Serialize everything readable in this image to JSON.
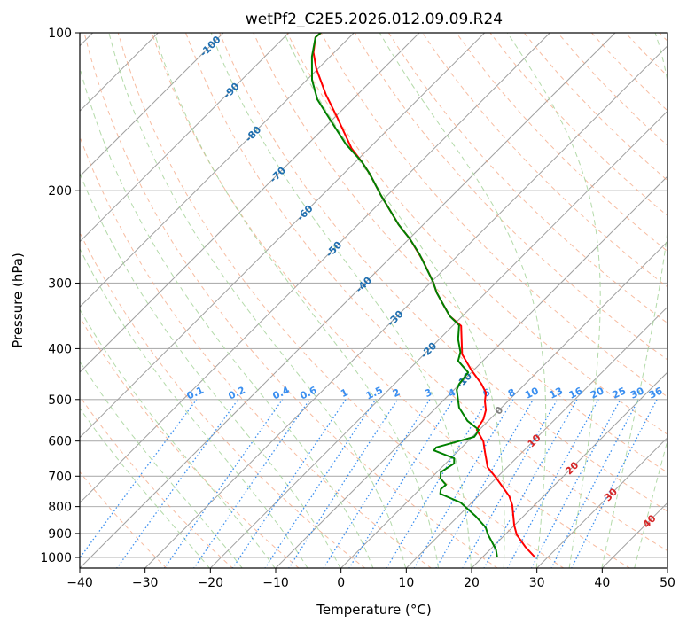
{
  "chart_data": {
    "type": "line",
    "subtype": "skew-t log-p",
    "title": "wetPf2_C2E5.2026.012.09.09.R24",
    "xlabel": "Temperature (°C)",
    "ylabel": "Pressure (hPa)",
    "xlim": [
      -40,
      50
    ],
    "ylim": [
      1050,
      100
    ],
    "x_ticks": [
      -40,
      -30,
      -20,
      -10,
      0,
      10,
      20,
      30,
      40,
      50
    ],
    "y_ticks": [
      100,
      200,
      300,
      400,
      500,
      600,
      700,
      800,
      900,
      1000
    ],
    "grid": true,
    "series": [
      {
        "name": "temperature",
        "color": "#ff0000",
        "pressure": [
          1000,
          955,
          905,
          869,
          795,
          765,
          707,
          673,
          630,
          601,
          571,
          545,
          524,
          504,
          485,
          467,
          440,
          410,
          362,
          347,
          329,
          313,
          298,
          271,
          247,
          232,
          204,
          186,
          176,
          166,
          145,
          131,
          117,
          109,
          102,
          100
        ],
        "temperature": [
          28.1,
          25.0,
          21.8,
          20.0,
          16.6,
          14.8,
          10.1,
          7.0,
          4.3,
          2.4,
          -0.4,
          -1.0,
          -2.0,
          -3.5,
          -4.7,
          -6.7,
          -10.3,
          -14.2,
          -18.7,
          -21.9,
          -24.8,
          -27.5,
          -29.8,
          -34.7,
          -39.9,
          -43.8,
          -51.0,
          -55.9,
          -59.1,
          -62.7,
          -69.6,
          -74.9,
          -80.3,
          -83.2,
          -85.2,
          -85.1
        ]
      },
      {
        "name": "dewpoint",
        "color": "#008000",
        "pressure": [
          1000,
          966,
          903,
          876,
          836,
          786,
          756,
          741,
          727,
          707,
          688,
          662,
          647,
          625,
          617,
          599,
          589,
          582,
          571,
          549,
          518,
          479,
          467,
          444,
          422,
          406,
          384,
          361,
          347,
          329,
          313,
          298,
          264,
          247,
          232,
          204,
          186,
          176,
          163,
          145,
          134,
          123,
          111,
          102,
          100
        ],
        "temperature": [
          22.3,
          20.9,
          17.3,
          15.9,
          12.8,
          8.3,
          3.8,
          3.2,
          3.3,
          1.5,
          0.6,
          1.3,
          0.5,
          -3.8,
          -3.9,
          -1.2,
          0.3,
          0.2,
          -0.1,
          -3.2,
          -6.5,
          -9.6,
          -10.1,
          -10.5,
          -13.8,
          -14.8,
          -17.1,
          -19.1,
          -21.9,
          -24.8,
          -27.5,
          -29.8,
          -36.1,
          -39.9,
          -43.8,
          -51.0,
          -55.9,
          -59.1,
          -64.2,
          -70.9,
          -75.4,
          -79.2,
          -82.8,
          -85.2,
          -85.1
        ]
      }
    ],
    "isotherm_labels": [
      {
        "text": "-100",
        "color": "#1f6fb0"
      },
      {
        "text": "-90",
        "color": "#1f6fb0"
      },
      {
        "text": "-80",
        "color": "#1f6fb0"
      },
      {
        "text": "-70",
        "color": "#1f6fb0"
      },
      {
        "text": "-60",
        "color": "#1f6fb0"
      },
      {
        "text": "-50",
        "color": "#1f6fb0"
      },
      {
        "text": "-40",
        "color": "#1f6fb0"
      },
      {
        "text": "-30",
        "color": "#1f6fb0"
      },
      {
        "text": "-20",
        "color": "#1f6fb0"
      },
      {
        "text": "-10",
        "color": "#1f6fb0"
      },
      {
        "text": "0",
        "color": "#808080"
      },
      {
        "text": "10",
        "color": "#d62728"
      },
      {
        "text": "20",
        "color": "#d62728"
      },
      {
        "text": "30",
        "color": "#d62728"
      },
      {
        "text": "40",
        "color": "#d62728"
      }
    ],
    "mixing_ratio_labels": [
      "0.1",
      "0.2",
      "0.4",
      "0.6",
      "1",
      "1.5",
      "2",
      "3",
      "4",
      "6",
      "8",
      "10",
      "13",
      "16",
      "20",
      "25",
      "30",
      "36"
    ],
    "colors": {
      "isotherm": "#a0a0a0",
      "isobar": "#b0b0b0",
      "dry_adiabat": "#f4a582",
      "moist_adiabat": "#a6d49a",
      "mixing_ratio": "#3b8ff0"
    }
  }
}
